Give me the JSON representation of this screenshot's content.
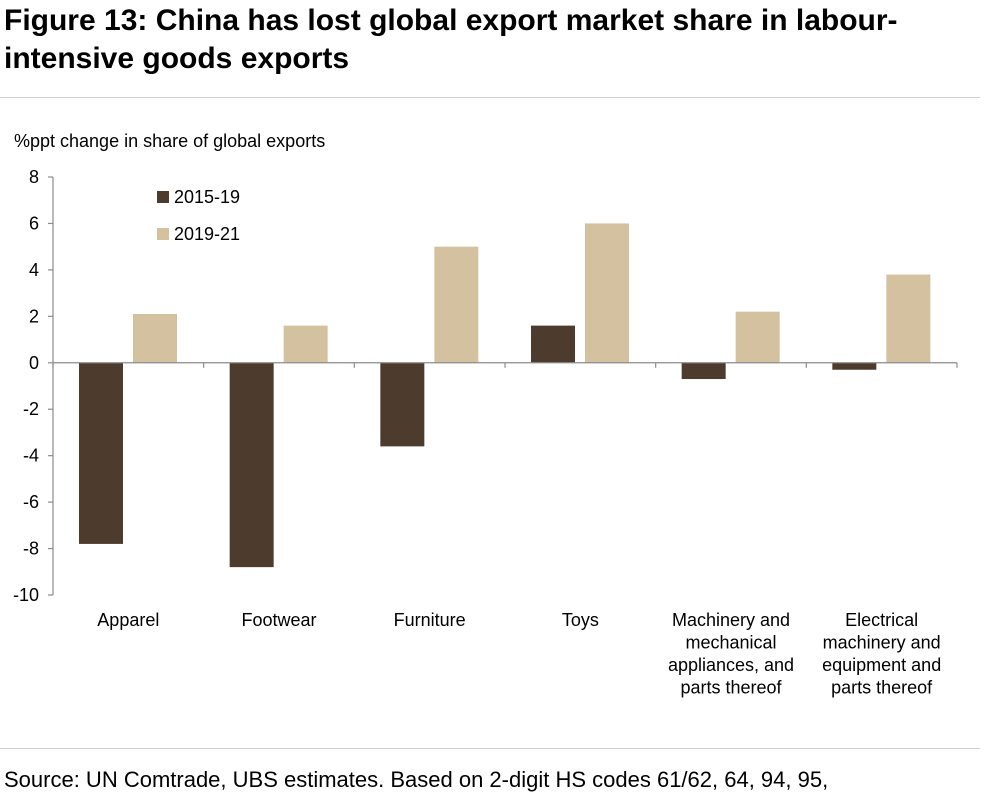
{
  "title": "Figure 13: China has lost global export market share in labour-intensive goods exports",
  "source": "Source: UN Comtrade, UBS estimates. Based on 2-digit HS codes 61/62, 64, 94, 95,",
  "chart_data": {
    "type": "bar",
    "ylabel": "%ppt change in share of global exports",
    "xlabel": "",
    "ylim": [
      -10,
      8
    ],
    "yticks": [
      8,
      6,
      4,
      2,
      0,
      -2,
      -4,
      -6,
      -8,
      -10
    ],
    "categories": [
      [
        "Apparel"
      ],
      [
        "Footwear"
      ],
      [
        "Furniture"
      ],
      [
        "Toys"
      ],
      [
        "Machinery and",
        "mechanical",
        "appliances, and",
        "parts thereof"
      ],
      [
        "Electrical",
        "machinery and",
        "equipment and",
        "parts thereof"
      ]
    ],
    "series": [
      {
        "name": "2015-19",
        "color": "#4d3b2d",
        "values": [
          -7.8,
          -8.8,
          -3.6,
          1.6,
          -0.7,
          -0.3
        ]
      },
      {
        "name": "2019-21",
        "color": "#d3c19f",
        "values": [
          2.1,
          1.6,
          5.0,
          6.0,
          2.2,
          3.8
        ]
      }
    ],
    "legend_position": "top-left",
    "grid": false
  }
}
